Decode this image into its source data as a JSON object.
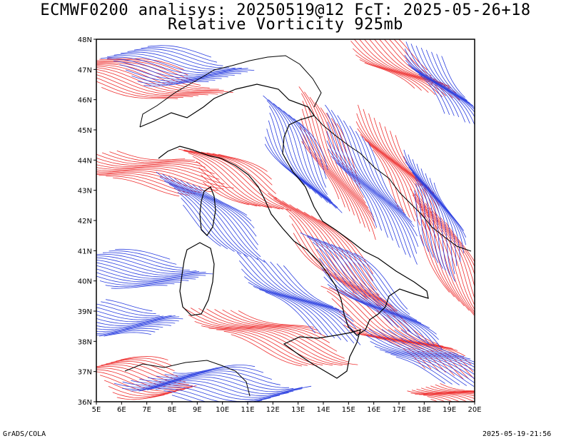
{
  "title_line1": "ECMWF0200 analisys: 20250519@12 FcT: 2025-05-26+18",
  "title_line2": "Relative Vorticity 925mb",
  "footer_left": "GrADS/COLA",
  "footer_right": "2025-05-19-21:56",
  "map": {
    "lon_range": [
      5,
      20
    ],
    "lat_range": [
      36,
      48
    ],
    "lon_ticks": [
      "5E",
      "6E",
      "7E",
      "8E",
      "9E",
      "10E",
      "11E",
      "12E",
      "13E",
      "14E",
      "15E",
      "16E",
      "17E",
      "18E",
      "19E",
      "20E"
    ],
    "lat_ticks": [
      "36N",
      "37N",
      "38N",
      "39N",
      "40N",
      "41N",
      "42N",
      "43N",
      "44N",
      "45N",
      "46N",
      "47N",
      "48N"
    ],
    "colors": {
      "positive": "#ee3030",
      "negative": "#2b3fe0",
      "coast": "#000000",
      "frame": "#000000"
    }
  }
}
